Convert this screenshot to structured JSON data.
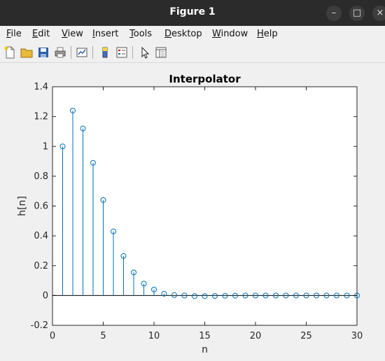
{
  "window": {
    "title": "Figure 1",
    "minimize": "–",
    "maximize": "□",
    "close": "×"
  },
  "menu": [
    "File",
    "Edit",
    "View",
    "Insert",
    "Tools",
    "Desktop",
    "Window",
    "Help"
  ],
  "toolbar": [
    "new-file-icon",
    "open-folder-icon",
    "save-icon",
    "print-icon",
    "link-plot-icon",
    "insert-colorbar-icon",
    "insert-legend-icon",
    "pointer-icon",
    "property-inspector-icon"
  ],
  "colors": {
    "stem": "#0072bd",
    "titlebar": "#2b2b2b"
  },
  "chart_data": {
    "type": "stem",
    "title": "Interpolator",
    "xlabel": "n",
    "ylabel": "h[n]",
    "xlim": [
      0,
      30
    ],
    "ylim": [
      -0.2,
      1.4
    ],
    "xticks": [
      "0",
      "5",
      "10",
      "15",
      "20",
      "25",
      "30"
    ],
    "yticks": [
      "-0.2",
      "0",
      "0.2",
      "0.4",
      "0.6",
      "0.8",
      "1",
      "1.2",
      "1.4"
    ],
    "x": [
      1,
      2,
      3,
      4,
      5,
      6,
      7,
      8,
      9,
      10,
      11,
      12,
      13,
      14,
      15,
      16,
      17,
      18,
      19,
      20,
      21,
      22,
      23,
      24,
      25,
      26,
      27,
      28,
      29,
      30
    ],
    "values": [
      1.0,
      1.24,
      1.12,
      0.89,
      0.64,
      0.43,
      0.265,
      0.155,
      0.08,
      0.04,
      0.012,
      0.003,
      0.0,
      -0.004,
      -0.004,
      -0.003,
      -0.002,
      -0.001,
      0,
      0,
      0,
      0,
      0,
      0,
      0,
      0,
      0,
      0,
      0,
      0
    ],
    "grid": false
  }
}
